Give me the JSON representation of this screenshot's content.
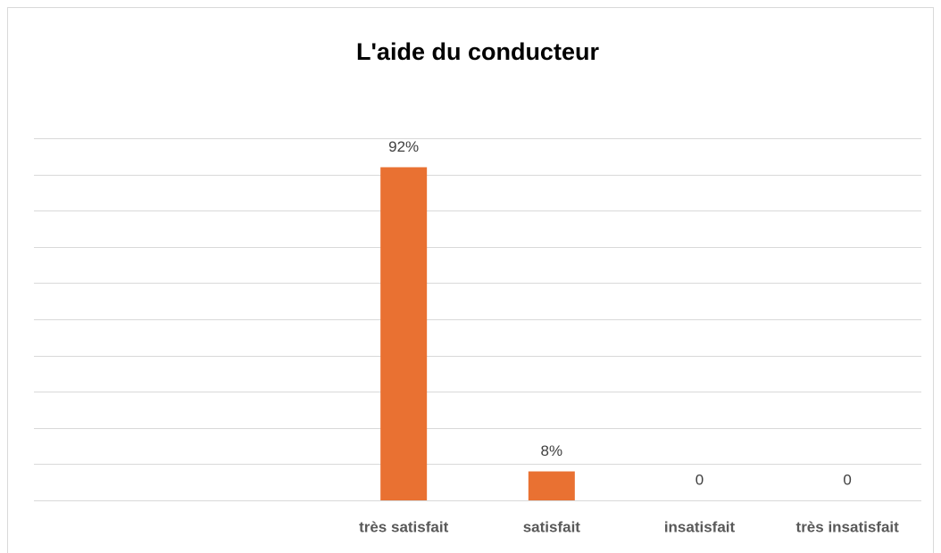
{
  "chart_data": {
    "type": "bar",
    "title": "L'aide du conducteur",
    "categories": [
      null,
      null,
      "très satisfait",
      "satisfait",
      "insatisfait",
      "très insatisfait"
    ],
    "values": [
      null,
      null,
      92,
      8,
      0,
      0
    ],
    "value_labels": [
      null,
      null,
      "92%",
      "8%",
      "0",
      "0"
    ],
    "color": "#e97132",
    "ylim": [
      0,
      100
    ],
    "yticks": [
      0,
      10,
      20,
      30,
      40,
      50,
      60,
      70,
      80,
      90,
      100
    ],
    "grid": true
  }
}
